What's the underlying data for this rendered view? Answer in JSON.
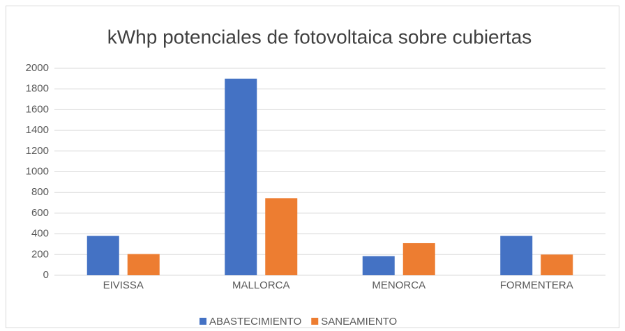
{
  "chart_data": {
    "type": "bar",
    "title": "kWhp potenciales de fotovoltaica sobre cubiertas",
    "categories": [
      "EIVISSA",
      "MALLORCA",
      "MENORCA",
      "FORMENTERA"
    ],
    "series": [
      {
        "name": "ABASTECIMIENTO",
        "color": "#4472c4",
        "values": [
          380,
          1900,
          185,
          380
        ]
      },
      {
        "name": "SANEAMIENTO",
        "color": "#ed7d31",
        "values": [
          205,
          745,
          310,
          200
        ]
      }
    ],
    "ylim": [
      0,
      2000
    ],
    "yticks": [
      0,
      200,
      400,
      600,
      800,
      1000,
      1200,
      1400,
      1600,
      1800,
      2000
    ],
    "grid": true,
    "legend": "bottom"
  }
}
